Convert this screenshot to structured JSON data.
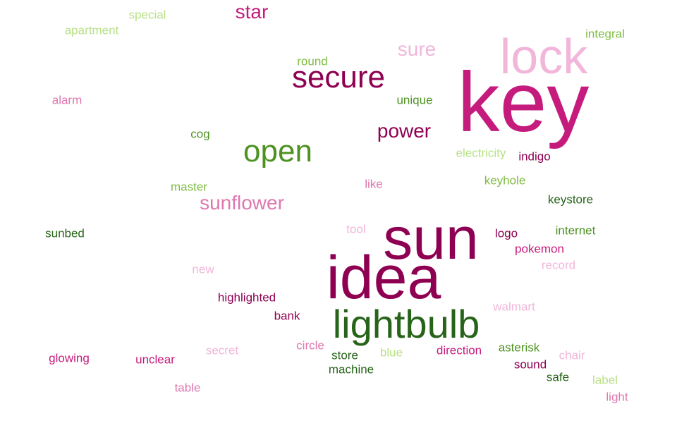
{
  "words": [
    {
      "text": "key",
      "color": "#c51b7d"
    },
    {
      "text": "idea",
      "color": "#8e0152"
    },
    {
      "text": "sun",
      "color": "#8e0152"
    },
    {
      "text": "lightbulb",
      "color": "#276419"
    },
    {
      "text": "lock",
      "color": "#f1b6da"
    },
    {
      "text": "secure",
      "color": "#8e0152"
    },
    {
      "text": "open",
      "color": "#4d9221"
    },
    {
      "text": "sunflower",
      "color": "#de77ae"
    },
    {
      "text": "power",
      "color": "#8e0152"
    },
    {
      "text": "sure",
      "color": "#f1b6da"
    },
    {
      "text": "star",
      "color": "#c51b7d"
    },
    {
      "text": "special",
      "color": "#b8e186"
    },
    {
      "text": "apartment",
      "color": "#b8e186"
    },
    {
      "text": "integral",
      "color": "#7fbc41"
    },
    {
      "text": "round",
      "color": "#7fbc41"
    },
    {
      "text": "unique",
      "color": "#4d9221"
    },
    {
      "text": "alarm",
      "color": "#de77ae"
    },
    {
      "text": "cog",
      "color": "#4d9221"
    },
    {
      "text": "electricity",
      "color": "#b8e186"
    },
    {
      "text": "indigo",
      "color": "#8e0152"
    },
    {
      "text": "master",
      "color": "#7fbc41"
    },
    {
      "text": "like",
      "color": "#de77ae"
    },
    {
      "text": "keyhole",
      "color": "#7fbc41"
    },
    {
      "text": "keystore",
      "color": "#276419"
    },
    {
      "text": "sunbed",
      "color": "#276419"
    },
    {
      "text": "tool",
      "color": "#f1b6da"
    },
    {
      "text": "logo",
      "color": "#8e0152"
    },
    {
      "text": "internet",
      "color": "#4d9221"
    },
    {
      "text": "pokemon",
      "color": "#c51b7d"
    },
    {
      "text": "new",
      "color": "#f1b6da"
    },
    {
      "text": "record",
      "color": "#f1b6da"
    },
    {
      "text": "highlighted",
      "color": "#8e0152"
    },
    {
      "text": "bank",
      "color": "#8e0152"
    },
    {
      "text": "walmart",
      "color": "#f1b6da"
    },
    {
      "text": "glowing",
      "color": "#c51b7d"
    },
    {
      "text": "unclear",
      "color": "#c51b7d"
    },
    {
      "text": "secret",
      "color": "#f1b6da"
    },
    {
      "text": "circle",
      "color": "#de77ae"
    },
    {
      "text": "store",
      "color": "#276419"
    },
    {
      "text": "blue",
      "color": "#b8e186"
    },
    {
      "text": "direction",
      "color": "#c51b7d"
    },
    {
      "text": "asterisk",
      "color": "#4d9221"
    },
    {
      "text": "chair",
      "color": "#f1b6da"
    },
    {
      "text": "machine",
      "color": "#276419"
    },
    {
      "text": "sound",
      "color": "#8e0152"
    },
    {
      "text": "safe",
      "color": "#276419"
    },
    {
      "text": "label",
      "color": "#b8e186"
    },
    {
      "text": "table",
      "color": "#de77ae"
    },
    {
      "text": "light",
      "color": "#de77ae"
    }
  ]
}
